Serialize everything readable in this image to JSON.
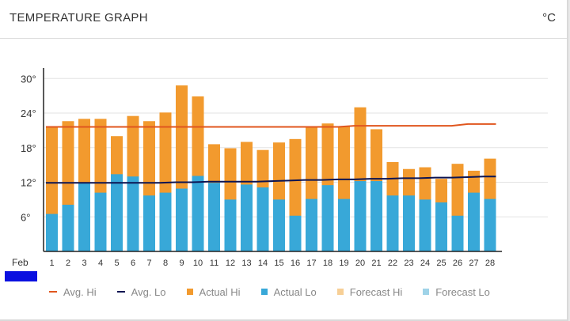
{
  "header": {
    "title": "TEMPERATURE GRAPH",
    "unit": "°C"
  },
  "colors": {
    "actual_hi": "#f29a2e",
    "actual_lo": "#38a8d8",
    "avg_hi": "#e0561e",
    "avg_lo": "#0c1452",
    "forecast_hi": "#f7cf96",
    "forecast_lo": "#9fd3e8",
    "grid": "#e3e3e3"
  },
  "legend": [
    {
      "label": "Avg. Hi",
      "kind": "line",
      "color": "#e0561e"
    },
    {
      "label": "Avg. Lo",
      "kind": "line",
      "color": "#0c1452"
    },
    {
      "label": "Actual Hi",
      "kind": "box",
      "color": "#f29a2e"
    },
    {
      "label": "Actual Lo",
      "kind": "box",
      "color": "#38a8d8"
    },
    {
      "label": "Forecast Hi",
      "kind": "box",
      "color": "#f7cf96"
    },
    {
      "label": "Forecast Lo",
      "kind": "box",
      "color": "#9fd3e8"
    }
  ],
  "chart_data": {
    "type": "bar",
    "month_label": "Feb",
    "categories": [
      "1",
      "2",
      "3",
      "4",
      "5",
      "6",
      "7",
      "8",
      "9",
      "10",
      "11",
      "12",
      "13",
      "14",
      "15",
      "16",
      "17",
      "18",
      "19",
      "20",
      "21",
      "22",
      "23",
      "24",
      "25",
      "26",
      "27",
      "28"
    ],
    "ylim": [
      0,
      31
    ],
    "y_ticks": [
      6,
      12,
      18,
      24,
      30
    ],
    "y_tick_labels": [
      "6°",
      "12°",
      "18°",
      "24°",
      "30°"
    ],
    "grid": true,
    "legend_position": "bottom",
    "series": [
      {
        "name": "Actual Hi",
        "values": [
          21.7,
          22.6,
          23.0,
          23.0,
          20.0,
          23.5,
          22.6,
          24.1,
          28.8,
          26.9,
          18.6,
          17.9,
          19.0,
          17.6,
          18.9,
          19.5,
          21.7,
          22.2,
          21.7,
          25.0,
          21.2,
          15.5,
          14.3,
          14.6,
          12.6,
          15.2,
          14.0,
          16.1
        ]
      },
      {
        "name": "Actual Lo",
        "values": [
          6.5,
          8.1,
          11.9,
          10.2,
          13.4,
          13.0,
          9.7,
          10.2,
          10.9,
          13.1,
          11.9,
          9.0,
          11.6,
          11.1,
          9.0,
          6.2,
          9.1,
          11.5,
          9.1,
          12.2,
          12.2,
          9.7,
          9.7,
          9.0,
          8.5,
          6.2,
          10.2,
          9.1
        ]
      },
      {
        "name": "Avg. Hi",
        "values": [
          21.6,
          21.6,
          21.6,
          21.6,
          21.6,
          21.6,
          21.6,
          21.6,
          21.6,
          21.6,
          21.6,
          21.6,
          21.6,
          21.6,
          21.6,
          21.6,
          21.6,
          21.6,
          21.6,
          21.8,
          21.8,
          21.8,
          21.8,
          21.8,
          21.8,
          21.8,
          22.1,
          22.1
        ]
      },
      {
        "name": "Avg. Lo",
        "values": [
          11.9,
          11.9,
          11.9,
          11.9,
          11.9,
          11.9,
          11.9,
          11.9,
          12.0,
          12.0,
          12.1,
          12.1,
          12.1,
          12.1,
          12.2,
          12.3,
          12.4,
          12.4,
          12.5,
          12.5,
          12.6,
          12.6,
          12.7,
          12.7,
          12.8,
          12.8,
          12.9,
          13.0
        ]
      }
    ]
  }
}
